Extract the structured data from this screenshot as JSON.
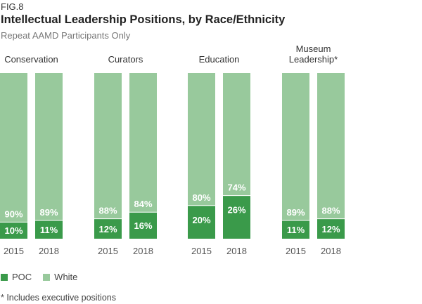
{
  "figure": {
    "fig_label": "FIG.8",
    "title": "Intellectual Leadership Positions, by Race/Ethnicity",
    "subtitle": "Repeat AAMD Participants Only",
    "footnote": "* Includes executive positions"
  },
  "legend": {
    "poc_label": "POC",
    "white_label": "White"
  },
  "colors": {
    "poc": "#3a9a4a",
    "white": "#98c99c"
  },
  "chart_data": {
    "type": "bar",
    "stacked": true,
    "groups": [
      {
        "label": [
          "Conservation"
        ],
        "years": [
          "2015",
          "2018"
        ],
        "poc": [
          10,
          11
        ],
        "white": [
          90,
          89
        ]
      },
      {
        "label": [
          "Curators"
        ],
        "years": [
          "2015",
          "2018"
        ],
        "poc": [
          12,
          16
        ],
        "white": [
          88,
          84
        ]
      },
      {
        "label": [
          "Education"
        ],
        "years": [
          "2015",
          "2018"
        ],
        "poc": [
          20,
          26
        ],
        "white": [
          80,
          74
        ]
      },
      {
        "label": [
          "Museum",
          "Leadership*"
        ],
        "years": [
          "2015",
          "2018"
        ],
        "poc": [
          11,
          12
        ],
        "white": [
          89,
          88
        ]
      }
    ],
    "series": [
      {
        "name": "POC",
        "key": "poc"
      },
      {
        "name": "White",
        "key": "white"
      }
    ],
    "ylim": [
      0,
      100
    ]
  }
}
